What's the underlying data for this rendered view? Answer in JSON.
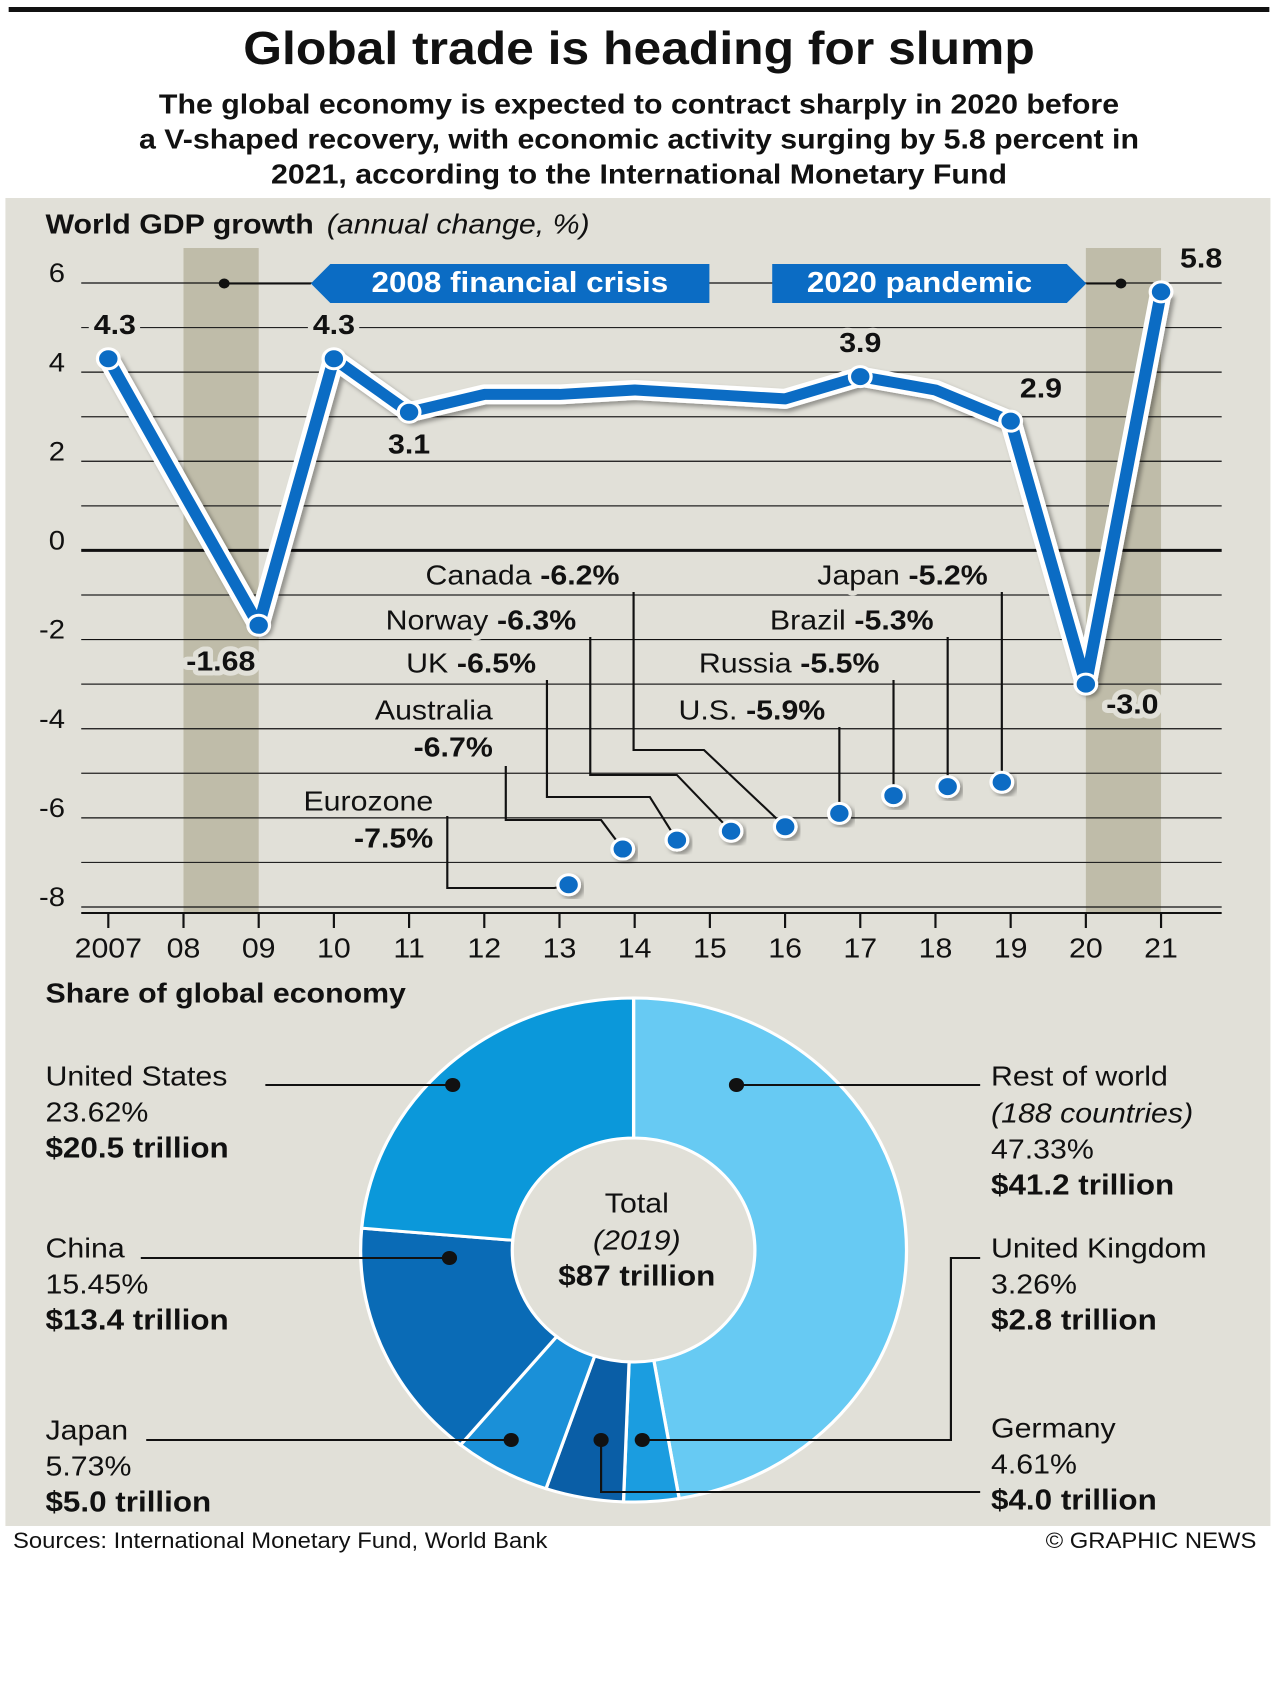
{
  "header": {
    "title": "Global trade is heading for slump",
    "subtitle": [
      "The global economy is expected to contract sharply in 2020 before",
      "a V-shaped recovery, with economic activity surging by 5.8 percent in",
      "2021, according to the International Monetary Fund"
    ]
  },
  "chart_data": [
    {
      "type": "line",
      "title": "World GDP growth",
      "subtitle": "(annual change, %)",
      "categories": [
        "2007",
        "08",
        "09",
        "10",
        "11",
        "12",
        "13",
        "14",
        "15",
        "16",
        "17",
        "18",
        "19",
        "20",
        "21"
      ],
      "values": [
        4.3,
        1.3,
        -1.68,
        4.3,
        3.1,
        3.5,
        3.5,
        3.6,
        3.5,
        3.4,
        3.9,
        3.6,
        2.9,
        -3.0,
        5.8
      ],
      "value_labels": [
        "4.3",
        null,
        "-1.68",
        "4.3",
        "3.1",
        null,
        null,
        null,
        null,
        null,
        "3.9",
        null,
        "2.9",
        "-3.0",
        "5.8"
      ],
      "color": "#0b6cc4",
      "ylim": [
        -8,
        6
      ],
      "yticks": [
        -8,
        -6,
        -4,
        -2,
        0,
        2,
        4,
        6
      ],
      "minor_yticks": [
        -7,
        -5,
        -3,
        -1,
        1,
        3,
        5
      ],
      "grid": true,
      "highlights": [
        {
          "start": "08",
          "end": "09",
          "label": "2008 financial crisis"
        },
        {
          "start": "20",
          "end": "21",
          "label": "2020 pandemic"
        }
      ],
      "country_forecasts": {
        "names": [
          "Eurozone",
          "Australia",
          "UK",
          "Norway",
          "Canada",
          "U.S.",
          "Russia",
          "Brazil",
          "Japan"
        ],
        "values": [
          -7.5,
          -6.7,
          -6.5,
          -6.3,
          -6.2,
          -5.9,
          -5.5,
          -5.3,
          -5.2
        ],
        "value_labels": [
          "-7.5%",
          "-6.7%",
          "-6.5%",
          "-6.3%",
          "-6.2%",
          "-5.9%",
          "-5.5%",
          "-5.3%",
          "-5.2%"
        ]
      }
    },
    {
      "type": "pie",
      "title": "Share of global economy",
      "categories": [
        "Rest of world",
        "United Kingdom",
        "Germany",
        "Japan",
        "China",
        "United States"
      ],
      "notes": [
        "(188 countries)",
        null,
        null,
        null,
        null,
        null
      ],
      "values": [
        47.33,
        3.26,
        4.61,
        5.73,
        15.45,
        23.62
      ],
      "value_labels": [
        "47.33%",
        "3.26%",
        "4.61%",
        "5.73%",
        "15.45%",
        "23.62%"
      ],
      "amounts": [
        41.2,
        2.8,
        4.0,
        5.0,
        13.4,
        20.5
      ],
      "amount_labels": [
        "$41.2 trillion",
        "$2.8 trillion",
        "$4.0 trillion",
        "$5.0 trillion",
        "$13.4 trillion",
        "$20.5 trillion"
      ],
      "colors": [
        "#67caf3",
        "#1b9de0",
        "#0a5ea6",
        "#1a90d8",
        "#0a6bb6",
        "#0b98da"
      ],
      "center": {
        "label": "Total",
        "year": "(2019)",
        "total": 87,
        "total_label": "$87 trillion"
      }
    }
  ],
  "footer": {
    "source": "Sources: International Monetary Fund, World Bank",
    "credit": "© GRAPHIC NEWS"
  }
}
